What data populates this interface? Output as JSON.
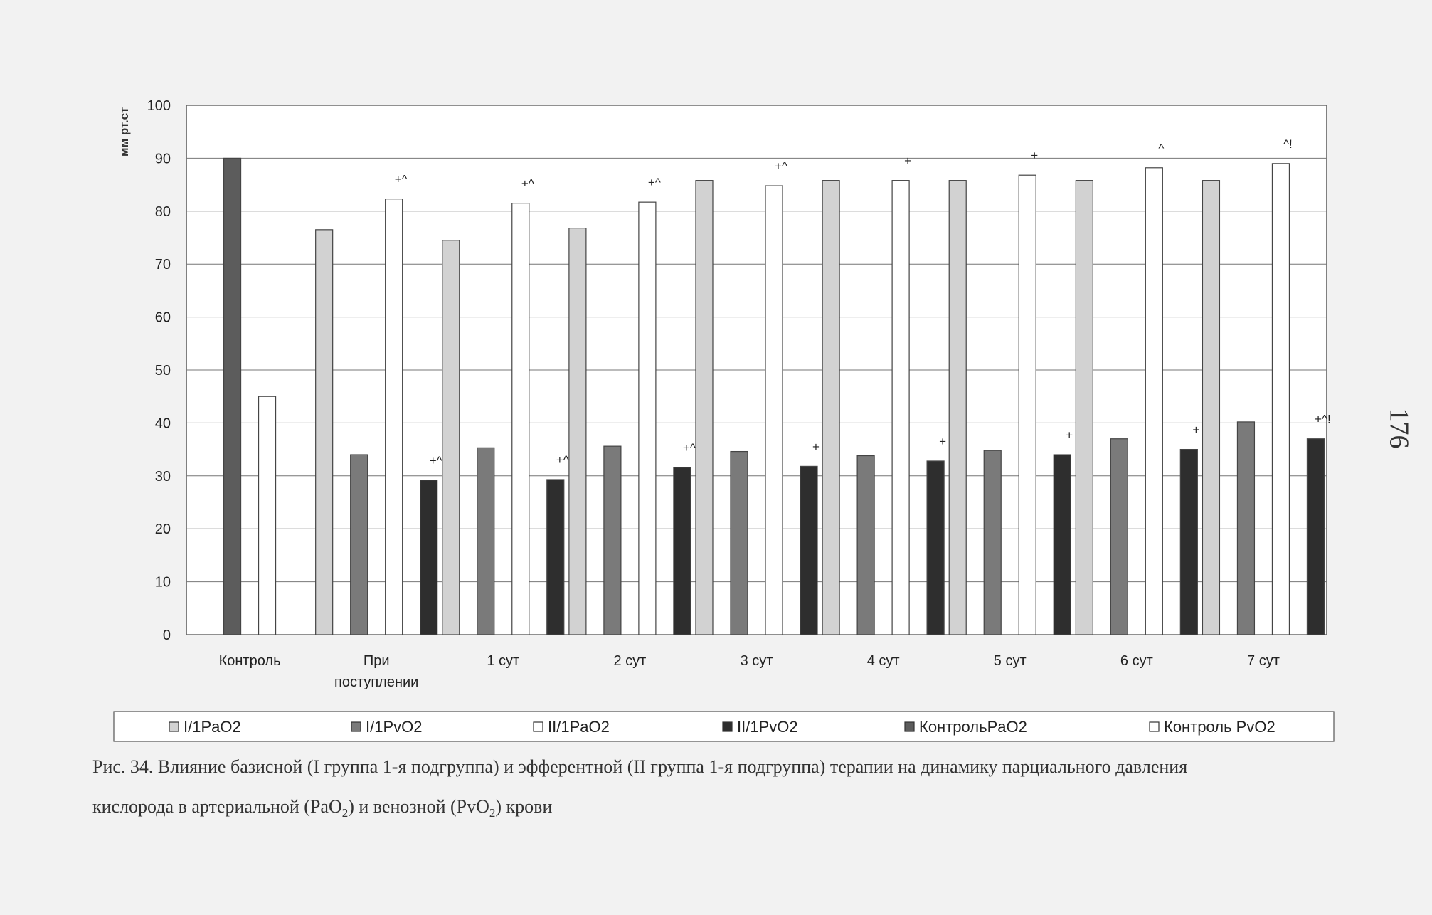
{
  "page_number": "176",
  "caption": {
    "line1": "Рис. 34. Влияние базисной (I группа 1-я подгруппа) и эфферентной (II группа 1-я подгруппа) терапии на динамику парциального давления",
    "line2_prefix": "кислорода в артериальной (PaO",
    "line2_sub1": "2",
    "line2_mid": ") и венозной (PvO",
    "line2_sub2": "2",
    "line2_suffix": ") крови"
  },
  "chart_data": {
    "type": "bar",
    "ylabel": "мм рт.ст",
    "ylim": [
      0,
      100
    ],
    "yticks": [
      0,
      10,
      20,
      30,
      40,
      50,
      60,
      70,
      80,
      90,
      100
    ],
    "grid": true,
    "legend_position": "bottom",
    "categories": [
      "Контроль",
      "При поступлении",
      "1 сут",
      "2 сут",
      "3 сут",
      "4 сут",
      "5 сут",
      "6 сут",
      "7 сут"
    ],
    "category_lines": [
      [
        "Контроль"
      ],
      [
        "При",
        "поступлении"
      ],
      [
        "1 сут"
      ],
      [
        "2 сут"
      ],
      [
        "3 сут"
      ],
      [
        "4 сут"
      ],
      [
        "5 сут"
      ],
      [
        "6 сут"
      ],
      [
        "7 сут"
      ]
    ],
    "series": [
      {
        "name": "I/1PaO2",
        "color": "#d2d2d2",
        "values": [
          null,
          76.5,
          74.5,
          76.8,
          85.8,
          85.8,
          85.8,
          85.8,
          85.8
        ]
      },
      {
        "name": "I/1PvO2",
        "color": "#7a7a7a",
        "values": [
          null,
          34,
          35.3,
          35.6,
          34.6,
          33.8,
          34.8,
          37,
          40.2
        ]
      },
      {
        "name": "II/1PaO2",
        "color": "#ffffff",
        "values": [
          null,
          82.3,
          81.5,
          81.7,
          84.8,
          85.8,
          86.8,
          88.2,
          89
        ]
      },
      {
        "name": "II/1PvO2",
        "color": "#2e2e2e",
        "values": [
          null,
          29.2,
          29.3,
          31.6,
          31.8,
          32.8,
          34,
          35,
          37
        ]
      },
      {
        "name": "КонтрольPaO2",
        "color": "#5c5c5c",
        "values": [
          90,
          null,
          null,
          null,
          null,
          null,
          null,
          null,
          null
        ]
      },
      {
        "name": "Контроль PvO2",
        "color": "#ffffff",
        "values": [
          45,
          null,
          null,
          null,
          null,
          null,
          null,
          null,
          null
        ]
      }
    ],
    "annotations": [
      {
        "category": 1,
        "series": 2,
        "text": "+^"
      },
      {
        "category": 1,
        "series": 3,
        "text": "+^"
      },
      {
        "category": 2,
        "series": 2,
        "text": "+^"
      },
      {
        "category": 2,
        "series": 3,
        "text": "+^"
      },
      {
        "category": 3,
        "series": 2,
        "text": "+^"
      },
      {
        "category": 3,
        "series": 3,
        "text": "+^"
      },
      {
        "category": 4,
        "series": 2,
        "text": "+^"
      },
      {
        "category": 4,
        "series": 3,
        "text": "+"
      },
      {
        "category": 5,
        "series": 2,
        "text": "+"
      },
      {
        "category": 5,
        "series": 3,
        "text": "+"
      },
      {
        "category": 6,
        "series": 2,
        "text": "+"
      },
      {
        "category": 6,
        "series": 3,
        "text": "+"
      },
      {
        "category": 7,
        "series": 2,
        "text": "^"
      },
      {
        "category": 7,
        "series": 3,
        "text": "+"
      },
      {
        "category": 8,
        "series": 2,
        "text": "^!"
      },
      {
        "category": 8,
        "series": 3,
        "text": "+^!"
      }
    ]
  }
}
